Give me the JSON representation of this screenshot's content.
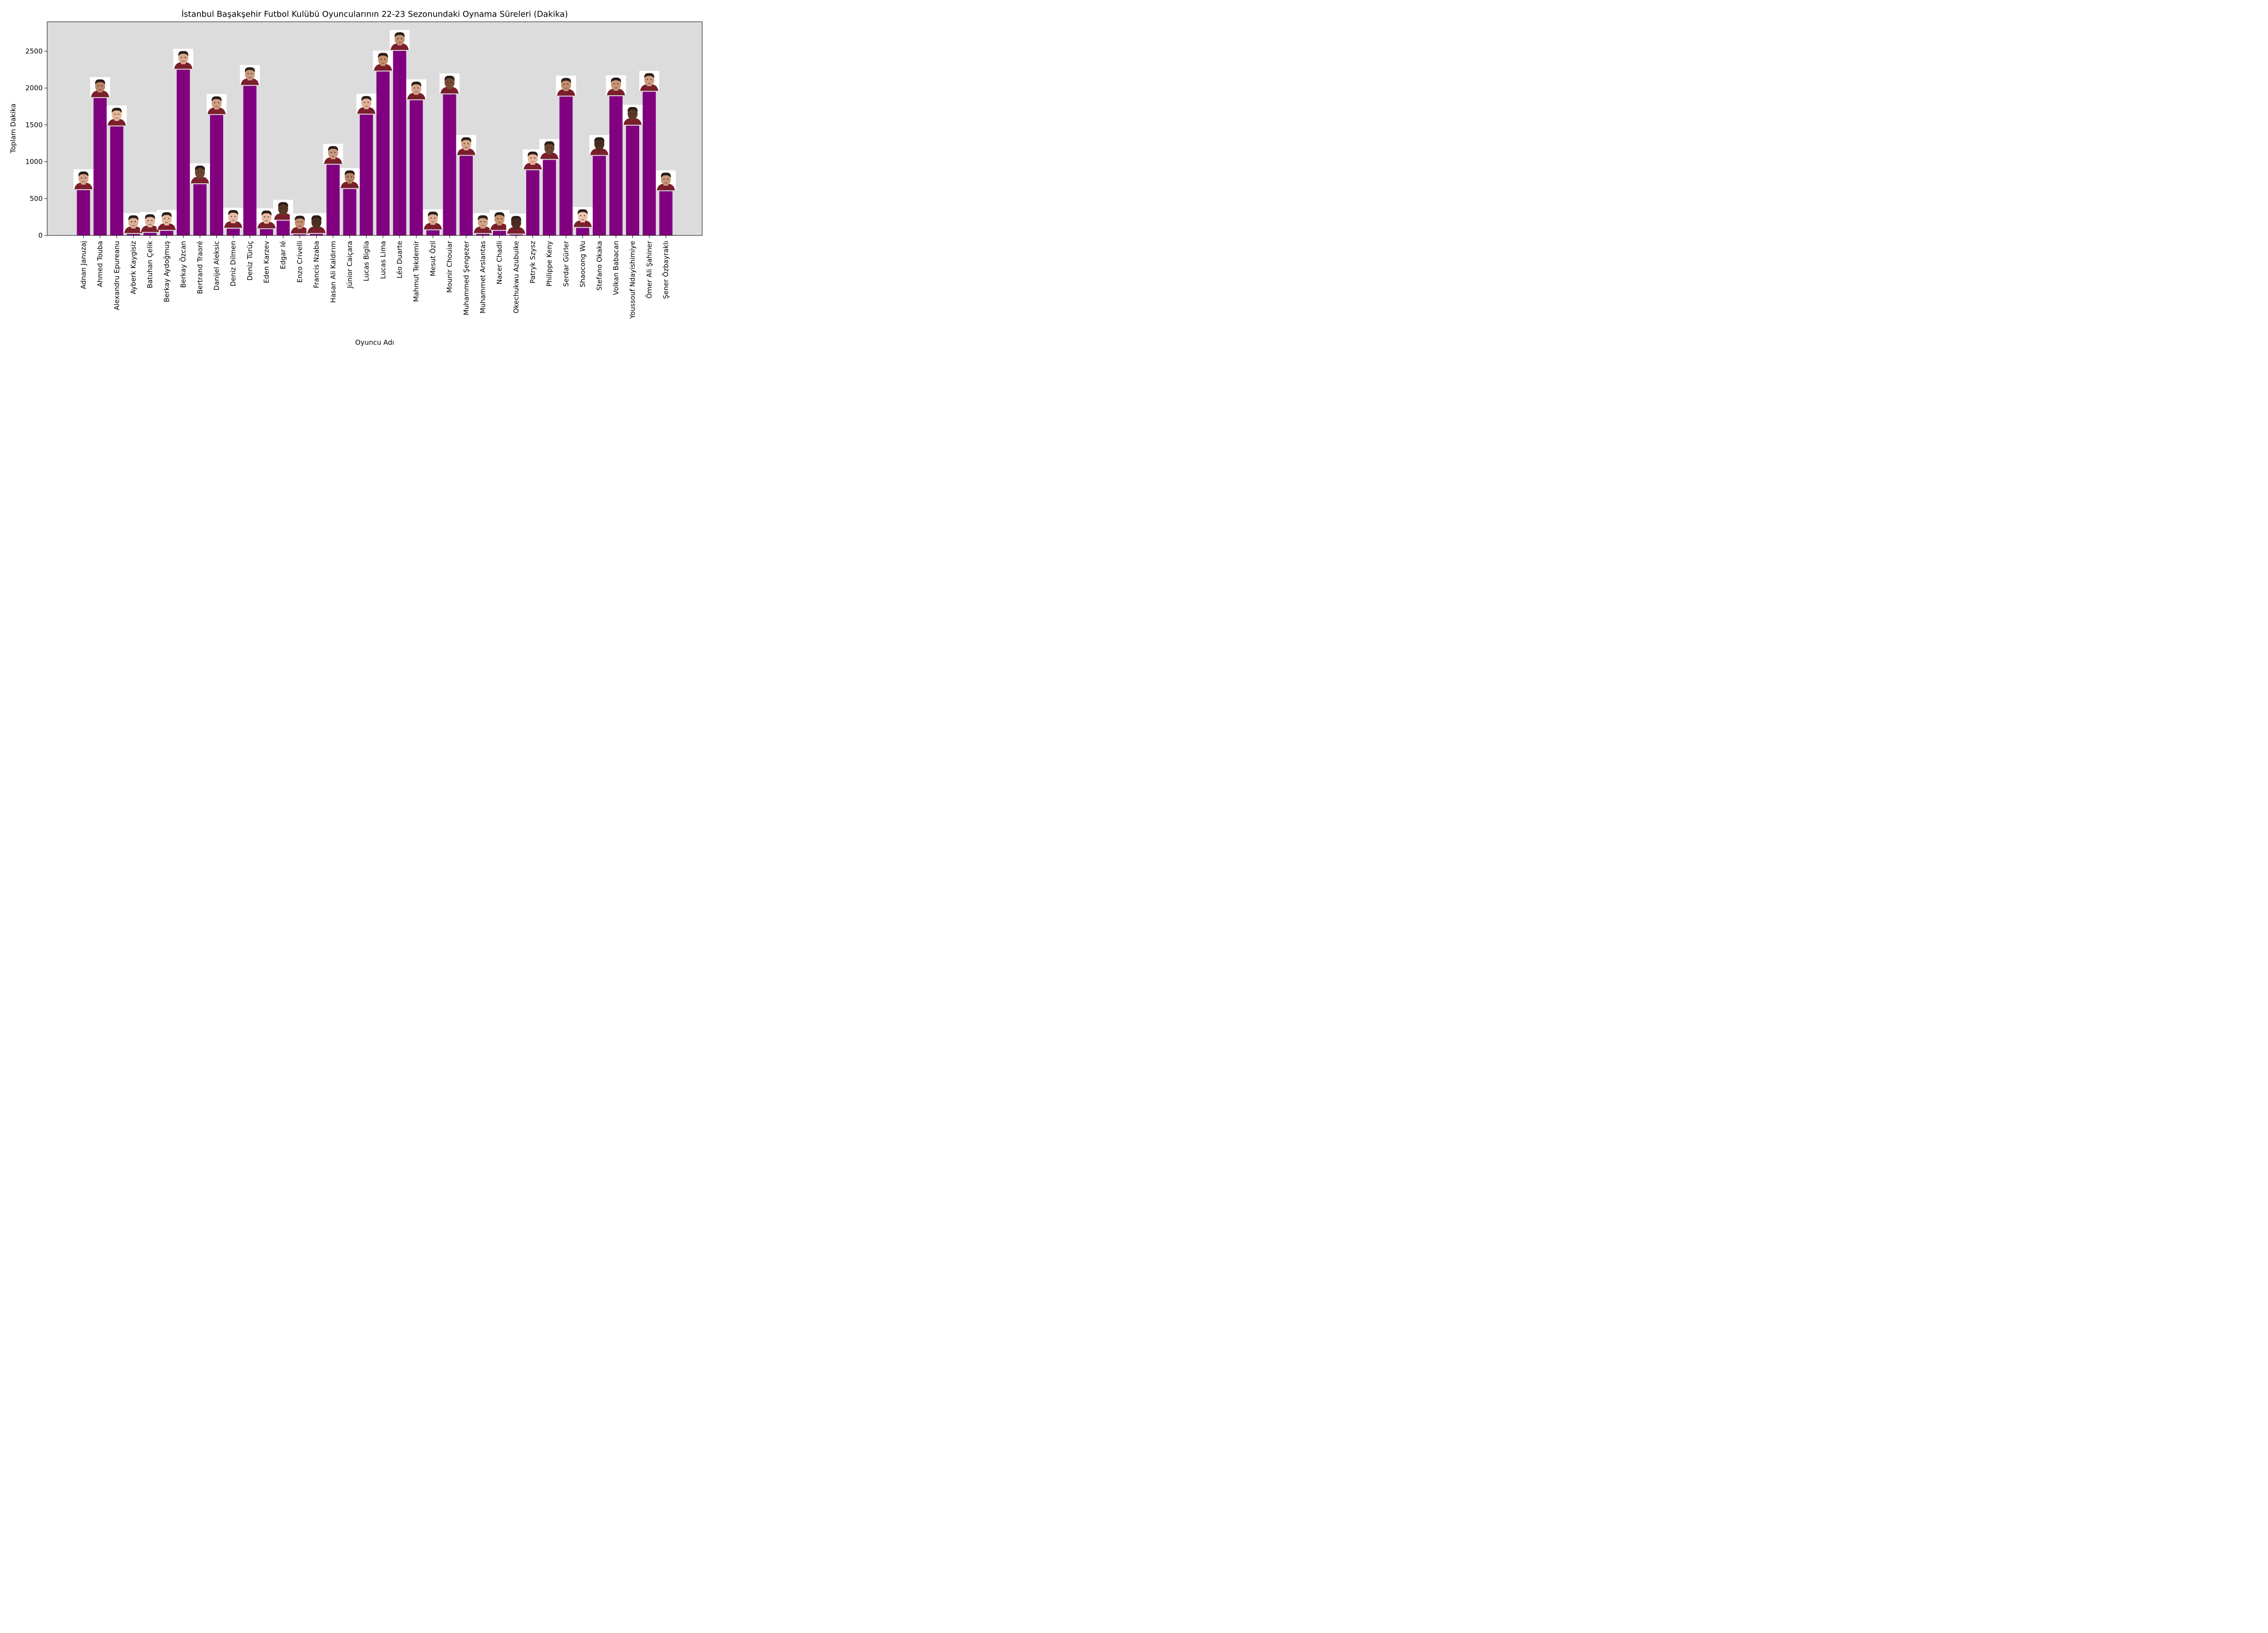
{
  "chart_data": {
    "type": "bar",
    "title": "İstanbul Başakşehir Futbol Kulübü Oyuncularının 22-23 Sezonundaki Oynama Süreleri (Dakika)",
    "xlabel": "Oyuncu Adı",
    "ylabel": "Toplam Dakika",
    "ylim": [
      0,
      2900
    ],
    "yticks": [
      0,
      500,
      1000,
      1500,
      2000,
      2500
    ],
    "grid": false,
    "bar_color": "#800080",
    "plot_background": "#dcdcdc",
    "categories": [
      "Adnan Januzaj",
      "Ahmed Touba",
      "Alexandru Epureanu",
      "Ayberk Kaygisiz",
      "Batuhan Çelik",
      "Berkay Aydoğmuş",
      "Berkay Özcan",
      "Bertrand Traoré",
      "Danijel Aleksic",
      "Deniz Dilmen",
      "Deniz Türüç",
      "Eden Karzev",
      "Edgar Ié",
      "Enzo Crivelli",
      "Francis Nzaba",
      "Hasan Ali Kaldırım",
      "Júnior Caiçara",
      "Lucas Biglia",
      "Lucas Lima",
      "Léo Duarte",
      "Mahmut Tekdemir",
      "Mesut Özil",
      "Mounir Chouiar",
      "Muhammed Şengezer",
      "Muhammet Arslantas",
      "Nacer Chadli",
      "Okechukwu Azubuike",
      "Patryk Szysz",
      "Philippe Keny",
      "Serdar Gürler",
      "Shaocong Wu",
      "Stefano Okaka",
      "Volkan Babacan",
      "Youssouf Ndayishimiye",
      "Ömer Ali Şahiner",
      "Şener Özbayraklı"
    ],
    "values": [
      615,
      1865,
      1480,
      20,
      35,
      62,
      2250,
      695,
      1635,
      92,
      2030,
      85,
      200,
      15,
      20,
      960,
      630,
      1640,
      2225,
      2505,
      1835,
      70,
      1915,
      1080,
      20,
      62,
      12,
      885,
      1025,
      1885,
      102,
      1080,
      1890,
      1490,
      1950,
      600
    ],
    "photo_skin_tones": [
      "#d7a488",
      "#b98568",
      "#e6b799",
      "#dcae94",
      "#e3b59c",
      "#e5b8a0",
      "#d9a98c",
      "#6d4430",
      "#cf9e82",
      "#e8bca4",
      "#c99a7d",
      "#e6baa2",
      "#5a3525",
      "#c58f70",
      "#4e3022",
      "#c9987c",
      "#b88566",
      "#e3b196",
      "#c48e6d",
      "#c2906f",
      "#d5a488",
      "#e0ae93",
      "#7a4b35",
      "#d8a689",
      "#d4a386",
      "#c9966f",
      "#4a2c1f",
      "#e6b59b",
      "#6a4532",
      "#c08c6b",
      "#ecc4ad",
      "#4b2d20",
      "#c89676",
      "#5d3828",
      "#cf9c80",
      "#c99679"
    ]
  }
}
